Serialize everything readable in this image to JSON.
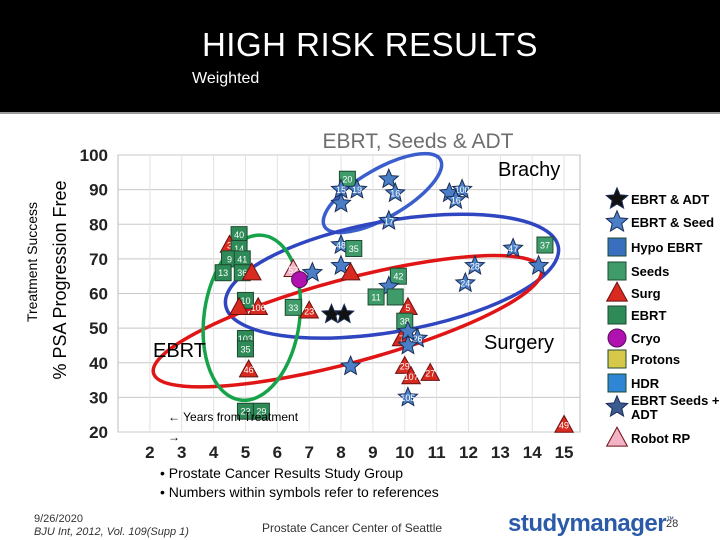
{
  "slide": {
    "title": "HIGH RISK RESULTS",
    "subtitle": "Weighted",
    "footer_bullets": [
      "• Prostate Cancer Results Study Group",
      "• Numbers within symbols refer to references"
    ],
    "date": "9/26/2020",
    "citation": "BJU Int, 2012, Vol. 109(Supp 1)",
    "center_footer": "Prostate Cancer Center of Seattle",
    "logo_text": "studymanager",
    "logo_tm": "™",
    "page_number": "28",
    "years_note": "← Years from Treatment",
    "years_arrow": "→"
  },
  "chart_data": {
    "type": "scatter",
    "title": "EBRT, Seeds & ADT",
    "ylabel_outer": "Treatment Success",
    "ylabel_inner": "% PSA Progression Free",
    "xlim": [
      1,
      15.5
    ],
    "ylim": [
      20,
      100
    ],
    "x_ticks": [
      2,
      3,
      4,
      5,
      6,
      7,
      8,
      9,
      10,
      11,
      12,
      13,
      14,
      15
    ],
    "y_ticks": [
      20,
      30,
      40,
      50,
      60,
      70,
      80,
      90,
      100
    ],
    "group_labels": [
      {
        "text": "Brachy",
        "color": "#000000"
      },
      {
        "text": "Surgery",
        "color": "#000000"
      },
      {
        "text": "EBRT",
        "color": "#000000"
      }
    ],
    "colors": {
      "ebrt_adt": "#111111",
      "ebrt_seeds": "#4a7fc7",
      "hypo": "#3a6fbf",
      "seeds": "#3f9c6a",
      "surg": "#d92a20",
      "ebrt_green": "#2e8b57",
      "cryo": "#b012b0",
      "protons": "#d8c84a",
      "hdr": "#2e86d4",
      "ebrt_seeds_adt": "#3a5a90",
      "robot": "#f3b2c6"
    },
    "legend": [
      {
        "label": "EBRT & ADT",
        "shape": "star",
        "color": "#111111"
      },
      {
        "label": "EBRT & Seed",
        "shape": "star",
        "color": "#4a7fc7"
      },
      {
        "label": "Hypo EBRT",
        "shape": "square",
        "color": "#3a6fbf"
      },
      {
        "label": "Seeds",
        "shape": "square",
        "color": "#3f9c6a"
      },
      {
        "label": "Surg",
        "shape": "triangle",
        "color": "#d92a20"
      },
      {
        "label": "EBRT",
        "shape": "square",
        "color": "#2e8b57"
      },
      {
        "label": "Cryo",
        "shape": "circle",
        "color": "#b012b0"
      },
      {
        "label": "Protons",
        "shape": "square",
        "color": "#d8c84a"
      },
      {
        "label": "HDR",
        "shape": "square",
        "color": "#2e86d4"
      },
      {
        "label": "EBRT Seeds + ADT",
        "shape": "star",
        "color": "#3a5a90"
      },
      {
        "label": "Robot RP",
        "shape": "triangle",
        "color": "#f3b2c6"
      }
    ],
    "ellipses": [
      {
        "name": "Brachy",
        "color": "#3a5fcc",
        "cx": 9.3,
        "cy": 89,
        "rx": 2.1,
        "ry": 7,
        "rot": -30
      },
      {
        "name": "Brachy",
        "color": "#2f46c0",
        "cx": 9.6,
        "cy": 65,
        "rx": 5.3,
        "ry": 16,
        "rot": -10
      },
      {
        "name": "Surgery",
        "color": "#e01515",
        "cx": 8.2,
        "cy": 52,
        "rx": 6.3,
        "ry": 12,
        "rot": -15
      },
      {
        "name": "EBRT",
        "color": "#16a34a",
        "cx": 5.2,
        "cy": 53,
        "rx": 1.5,
        "ry": 24,
        "rot": 8
      }
    ],
    "points": [
      {
        "x": 8.2,
        "y": 93,
        "label": "20",
        "shape": "square",
        "color": "#3f9c6a"
      },
      {
        "x": 8.0,
        "y": 90,
        "label": "15",
        "shape": "star",
        "color": "#4a7fc7"
      },
      {
        "x": 8.5,
        "y": 90,
        "label": "19",
        "shape": "star",
        "color": "#4a7fc7"
      },
      {
        "x": 9.5,
        "y": 93,
        "label": "",
        "shape": "star",
        "color": "#4a7fc7"
      },
      {
        "x": 9.7,
        "y": 89,
        "label": "16",
        "shape": "star",
        "color": "#4a7fc7"
      },
      {
        "x": 8.0,
        "y": 86,
        "label": "",
        "shape": "star",
        "color": "#4a7fc7"
      },
      {
        "x": 11.4,
        "y": 89,
        "label": "",
        "shape": "star",
        "color": "#4a7fc7"
      },
      {
        "x": 11.8,
        "y": 90,
        "label": "100",
        "shape": "star",
        "color": "#4a7fc7"
      },
      {
        "x": 11.6,
        "y": 87,
        "label": "16",
        "shape": "star",
        "color": "#4a7fc7"
      },
      {
        "x": 9.5,
        "y": 81,
        "label": "17",
        "shape": "star",
        "color": "#4a7fc7"
      },
      {
        "x": 4.8,
        "y": 77,
        "label": "40",
        "shape": "square",
        "color": "#2e8b57"
      },
      {
        "x": 4.5,
        "y": 74,
        "label": "3",
        "shape": "triangle",
        "color": "#d92a20"
      },
      {
        "x": 4.8,
        "y": 73,
        "label": "14",
        "shape": "square",
        "color": "#2e8b57"
      },
      {
        "x": 4.5,
        "y": 70,
        "label": "9",
        "shape": "square",
        "color": "#2e8b57"
      },
      {
        "x": 4.9,
        "y": 70,
        "label": "41",
        "shape": "square",
        "color": "#2e8b57"
      },
      {
        "x": 4.3,
        "y": 66,
        "label": "13",
        "shape": "square",
        "color": "#2e8b57"
      },
      {
        "x": 4.9,
        "y": 66,
        "label": "36",
        "shape": "square",
        "color": "#2e8b57"
      },
      {
        "x": 5.2,
        "y": 66,
        "label": "",
        "shape": "triangle",
        "color": "#d92a20"
      },
      {
        "x": 6.5,
        "y": 67,
        "label": "52",
        "shape": "triangle",
        "color": "#f3b2c6"
      },
      {
        "x": 6.7,
        "y": 64,
        "label": "",
        "shape": "circle",
        "color": "#b012b0"
      },
      {
        "x": 7.1,
        "y": 66,
        "label": "",
        "shape": "star",
        "color": "#4a7fc7"
      },
      {
        "x": 8.0,
        "y": 74,
        "label": "48",
        "shape": "star",
        "color": "#4a7fc7"
      },
      {
        "x": 8.4,
        "y": 73,
        "label": "35",
        "shape": "square",
        "color": "#3f9c6a"
      },
      {
        "x": 8.0,
        "y": 68,
        "label": "",
        "shape": "star",
        "color": "#4a7fc7"
      },
      {
        "x": 8.3,
        "y": 66,
        "label": "",
        "shape": "triangle",
        "color": "#d92a20"
      },
      {
        "x": 9.8,
        "y": 65,
        "label": "42",
        "shape": "square",
        "color": "#3f9c6a"
      },
      {
        "x": 9.5,
        "y": 62,
        "label": "",
        "shape": "star",
        "color": "#4a7fc7"
      },
      {
        "x": 9.1,
        "y": 59,
        "label": "11",
        "shape": "square",
        "color": "#3f9c6a"
      },
      {
        "x": 9.7,
        "y": 59,
        "label": "",
        "shape": "square",
        "color": "#3f9c6a"
      },
      {
        "x": 12.2,
        "y": 68,
        "label": "28",
        "shape": "star",
        "color": "#4a7fc7"
      },
      {
        "x": 11.9,
        "y": 63,
        "label": "24",
        "shape": "star",
        "color": "#4a7fc7"
      },
      {
        "x": 13.4,
        "y": 73,
        "label": "47",
        "shape": "star",
        "color": "#4a7fc7"
      },
      {
        "x": 14.4,
        "y": 74,
        "label": "37",
        "shape": "square",
        "color": "#3f9c6a"
      },
      {
        "x": 14.2,
        "y": 68,
        "label": "",
        "shape": "star",
        "color": "#4a7fc7"
      },
      {
        "x": 5.0,
        "y": 58,
        "label": "10",
        "shape": "square",
        "color": "#2e8b57"
      },
      {
        "x": 5.4,
        "y": 56,
        "label": "106",
        "shape": "triangle",
        "color": "#d92a20"
      },
      {
        "x": 4.8,
        "y": 56,
        "label": "",
        "shape": "triangle",
        "color": "#d92a20"
      },
      {
        "x": 6.5,
        "y": 56,
        "label": "33",
        "shape": "square",
        "color": "#3f9c6a"
      },
      {
        "x": 7.0,
        "y": 55,
        "label": "23",
        "shape": "triangle",
        "color": "#d92a20"
      },
      {
        "x": 7.7,
        "y": 54,
        "label": "",
        "shape": "star",
        "color": "#111111"
      },
      {
        "x": 8.1,
        "y": 54,
        "label": "",
        "shape": "star",
        "color": "#111111"
      },
      {
        "x": 10.1,
        "y": 56,
        "label": "5",
        "shape": "triangle",
        "color": "#d92a20"
      },
      {
        "x": 10.0,
        "y": 52,
        "label": "38",
        "shape": "square",
        "color": "#3f9c6a"
      },
      {
        "x": 5.0,
        "y": 47,
        "label": "103",
        "shape": "square",
        "color": "#2e8b57"
      },
      {
        "x": 5.0,
        "y": 44,
        "label": "35",
        "shape": "square",
        "color": "#2e8b57"
      },
      {
        "x": 9.9,
        "y": 47,
        "label": "7",
        "shape": "triangle",
        "color": "#d92a20"
      },
      {
        "x": 10.4,
        "y": 47,
        "label": "26",
        "shape": "star",
        "color": "#4a7fc7"
      },
      {
        "x": 10.1,
        "y": 49,
        "label": "",
        "shape": "star",
        "color": "#4a7fc7"
      },
      {
        "x": 10.1,
        "y": 45,
        "label": "",
        "shape": "star",
        "color": "#4a7fc7"
      },
      {
        "x": 5.1,
        "y": 38,
        "label": "46",
        "shape": "triangle",
        "color": "#d92a20"
      },
      {
        "x": 8.3,
        "y": 39,
        "label": "",
        "shape": "star",
        "color": "#4a7fc7"
      },
      {
        "x": 10.0,
        "y": 39,
        "label": "29",
        "shape": "triangle",
        "color": "#d92a20"
      },
      {
        "x": 10.8,
        "y": 37,
        "label": "27",
        "shape": "triangle",
        "color": "#d92a20"
      },
      {
        "x": 10.2,
        "y": 36,
        "label": "107",
        "shape": "triangle",
        "color": "#d92a20"
      },
      {
        "x": 10.1,
        "y": 30,
        "label": "105",
        "shape": "star",
        "color": "#4a7fc7"
      },
      {
        "x": 5.0,
        "y": 26,
        "label": "23",
        "shape": "square",
        "color": "#2e8b57"
      },
      {
        "x": 5.5,
        "y": 26,
        "label": "29",
        "shape": "square",
        "color": "#2e8b57"
      },
      {
        "x": 15.0,
        "y": 22,
        "label": "49",
        "shape": "triangle",
        "color": "#d92a20"
      }
    ]
  }
}
